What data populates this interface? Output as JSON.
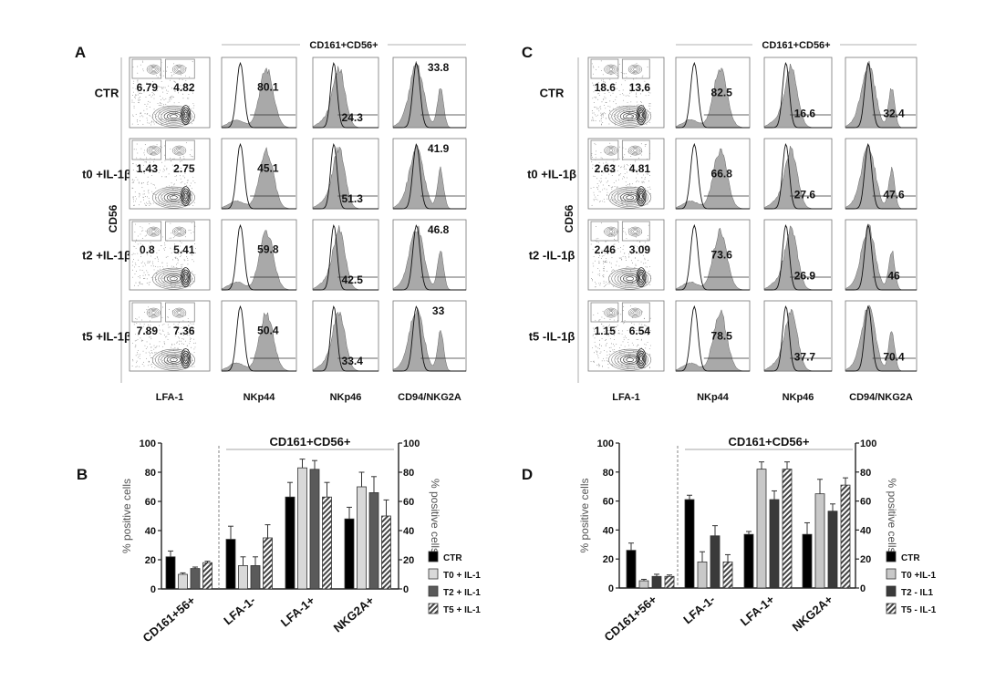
{
  "flow_panels": [
    {
      "letter": "A",
      "header": "CD161+CD56+",
      "ylabel": "CD56",
      "columns": [
        "LFA-1",
        "NKp44",
        "NKp46",
        "CD94/NKG2A"
      ],
      "rows": [
        {
          "label": "CTR",
          "gates": [
            "6.79",
            "4.82"
          ],
          "hist": [
            "80.1",
            "24.3",
            "33.8"
          ]
        },
        {
          "label": "t0 +IL-1β",
          "gates": [
            "1.43",
            "2.75"
          ],
          "hist": [
            "45.1",
            "51.3",
            "41.9"
          ]
        },
        {
          "label": "t2 +IL-1β",
          "gates": [
            "0.8",
            "5.41"
          ],
          "hist": [
            "59.8",
            "42.5",
            "46.8"
          ]
        },
        {
          "label": "t5 +IL-1β",
          "gates": [
            "7.89",
            "7.36"
          ],
          "hist": [
            "50.4",
            "33.4",
            "33"
          ]
        }
      ]
    },
    {
      "letter": "C",
      "header": "CD161+CD56+",
      "ylabel": "CD56",
      "columns": [
        "LFA-1",
        "NKp44",
        "NKp46",
        "CD94/NKG2A"
      ],
      "rows": [
        {
          "label": "CTR",
          "gates": [
            "18.6",
            "13.6"
          ],
          "hist": [
            "82.5",
            "16.6",
            "32.4"
          ]
        },
        {
          "label": "t0 +IL-1β",
          "gates": [
            "2.63",
            "4.81"
          ],
          "hist": [
            "66.8",
            "27.6",
            "47.6"
          ]
        },
        {
          "label": "t2 -IL-1β",
          "gates": [
            "2.46",
            "3.09"
          ],
          "hist": [
            "73.6",
            "26.9",
            "46"
          ]
        },
        {
          "label": "t5 -IL-1β",
          "gates": [
            "1.15",
            "6.54"
          ],
          "hist": [
            "78.5",
            "37.7",
            "70.4"
          ]
        }
      ]
    }
  ],
  "chart_data": [
    {
      "letter": "B",
      "type": "bar",
      "header": "CD161+CD56+",
      "ylabel": "% positive cells",
      "ylabel_right": "% positive cells",
      "ylim": [
        0,
        100
      ],
      "yticks": [
        "0",
        "20",
        "40",
        "60",
        "80",
        "100"
      ],
      "categories": [
        "CD161+56+",
        "LFA-1-",
        "LFA-1+",
        "NKG2A+"
      ],
      "legend_position": "bottom-right",
      "series": [
        {
          "name": "CTR",
          "fill": "#000000",
          "values": [
            22,
            34,
            63,
            48
          ],
          "errors": [
            4,
            9,
            10,
            8
          ]
        },
        {
          "name": "T0 + IL-1",
          "fill": "#d9d9d9",
          "values": [
            10,
            16,
            83,
            70
          ],
          "errors": [
            1,
            6,
            6,
            10
          ]
        },
        {
          "name": "T2 + IL-1",
          "fill": "#5a5a5a",
          "values": [
            14,
            16,
            82,
            66
          ],
          "errors": [
            1,
            6,
            6,
            11
          ]
        },
        {
          "name": "T5 + IL-1",
          "fill": "hatch",
          "values": [
            18,
            35,
            63,
            50
          ],
          "errors": [
            1,
            9,
            10,
            11
          ]
        }
      ]
    },
    {
      "letter": "D",
      "type": "bar",
      "header": "CD161+CD56+",
      "ylabel": "% positive cells",
      "ylabel_right": "% positive cells",
      "ylim": [
        0,
        100
      ],
      "yticks": [
        "0",
        "20",
        "40",
        "60",
        "80",
        "100"
      ],
      "categories": [
        "CD161+56+",
        "LFA-1-",
        "LFA-1+",
        "NKG2A+"
      ],
      "legend_position": "bottom-right",
      "series": [
        {
          "name": "CTR",
          "fill": "#000000",
          "values": [
            26,
            61,
            37,
            37
          ],
          "errors": [
            5,
            3,
            2,
            8
          ]
        },
        {
          "name": "T0 +IL-1",
          "fill": "#c8c8c8",
          "values": [
            5,
            18,
            82,
            65
          ],
          "errors": [
            1,
            7,
            5,
            10
          ]
        },
        {
          "name": "T2 - IL1",
          "fill": "#3a3a3a",
          "values": [
            8,
            36,
            61,
            53
          ],
          "errors": [
            1.5,
            7,
            6,
            5
          ]
        },
        {
          "name": "T5 - IL-1",
          "fill": "hatch",
          "values": [
            8,
            18,
            82,
            71
          ],
          "errors": [
            1,
            5,
            5,
            5
          ]
        }
      ]
    }
  ]
}
